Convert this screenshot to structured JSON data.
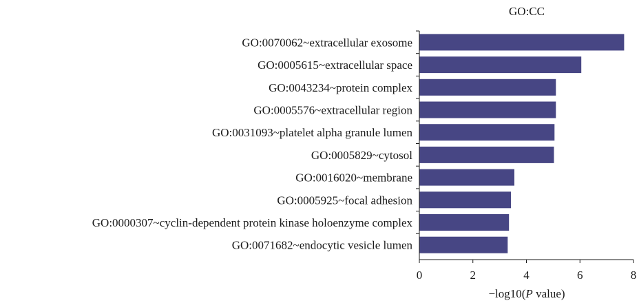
{
  "chart_data": {
    "type": "bar",
    "orientation": "horizontal",
    "title": "GO:CC",
    "xlabel_prefix": "−log10(",
    "xlabel_italic": "P",
    "xlabel_suffix": " value)",
    "ylabel": "",
    "xlim": [
      0,
      8
    ],
    "xticks": [
      0,
      2,
      4,
      6,
      8
    ],
    "grid": false,
    "bar_color": "#474684",
    "categories": [
      "GO:0070062~extracellular exosome",
      "GO:0005615~extracellular space",
      "GO:0043234~protein complex",
      "GO:0005576~extracellular region",
      "GO:0031093~platelet alpha granule lumen",
      "GO:0005829~cytosol",
      "GO:0016020~membrane",
      "GO:0005925~focal adhesion",
      "GO:0000307~cyclin-dependent protein kinase holoenzyme complex",
      "GO:0071682~endocytic vesicle lumen"
    ],
    "values": [
      7.65,
      6.05,
      5.1,
      5.1,
      5.05,
      5.03,
      3.55,
      3.42,
      3.35,
      3.3
    ]
  }
}
